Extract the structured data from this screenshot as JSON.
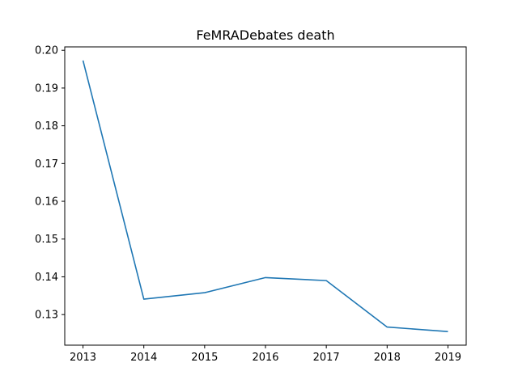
{
  "chart_data": {
    "type": "line",
    "title": "FeMRADebates death",
    "xlabel": "",
    "ylabel": "",
    "x": [
      2013,
      2014,
      2015,
      2016,
      2017,
      2018,
      2019
    ],
    "series": [
      {
        "values": [
          0.1973,
          0.1341,
          0.1358,
          0.1398,
          0.139,
          0.1267,
          0.1255
        ],
        "color": "#1f77b4"
      }
    ],
    "xlim": [
      2012.7,
      2019.3
    ],
    "ylim": [
      0.1219,
      0.2009
    ],
    "x_ticks": [
      "2013",
      "2014",
      "2015",
      "2016",
      "2017",
      "2018",
      "2019"
    ],
    "y_ticks": [
      "0.13",
      "0.14",
      "0.15",
      "0.16",
      "0.17",
      "0.18",
      "0.19",
      "0.20"
    ],
    "grid": false,
    "legend": "none"
  }
}
